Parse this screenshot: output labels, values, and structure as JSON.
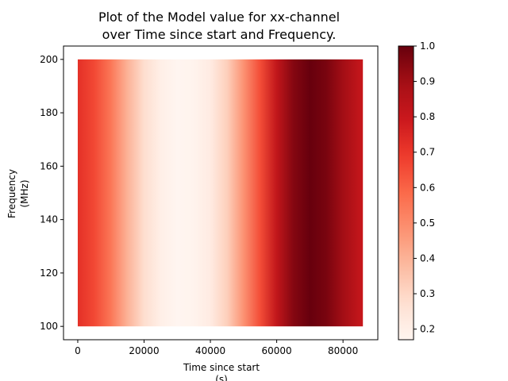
{
  "chart_data": {
    "type": "heatmap",
    "title_lines": [
      "Plot of the Model value for xx-channel",
      "over Time since start and Frequency."
    ],
    "xlabel_lines": [
      "Time since start",
      "(s)"
    ],
    "ylabel_lines": [
      "Frequency",
      "(MHz)"
    ],
    "xlim": [
      -4300,
      90500
    ],
    "ylim": [
      95,
      205
    ],
    "x_ticks": [
      0,
      20000,
      40000,
      60000,
      80000
    ],
    "y_ticks": [
      100,
      120,
      140,
      160,
      180,
      200
    ],
    "x_range": [
      0,
      86000
    ],
    "y_range": [
      100,
      200
    ],
    "colormap": "Reds",
    "colorbar": {
      "range": [
        0.17,
        1.0
      ],
      "ticks": [
        0.2,
        0.3,
        0.4,
        0.5,
        0.6,
        0.7,
        0.8,
        0.9,
        1.0
      ],
      "tick_labels": [
        "0.2",
        "0.3",
        "0.4",
        "0.5",
        "0.6",
        "0.7",
        "0.8",
        "0.9",
        "1.0"
      ]
    },
    "value_profile_over_time": {
      "x": [
        0,
        5000,
        10000,
        15000,
        20000,
        25000,
        30000,
        35000,
        40000,
        45000,
        50000,
        55000,
        60000,
        65000,
        70000,
        75000,
        80000,
        86000
      ],
      "values": [
        0.72,
        0.66,
        0.55,
        0.4,
        0.28,
        0.2,
        0.17,
        0.18,
        0.22,
        0.32,
        0.48,
        0.65,
        0.82,
        0.95,
        1.0,
        0.97,
        0.9,
        0.8
      ]
    }
  }
}
